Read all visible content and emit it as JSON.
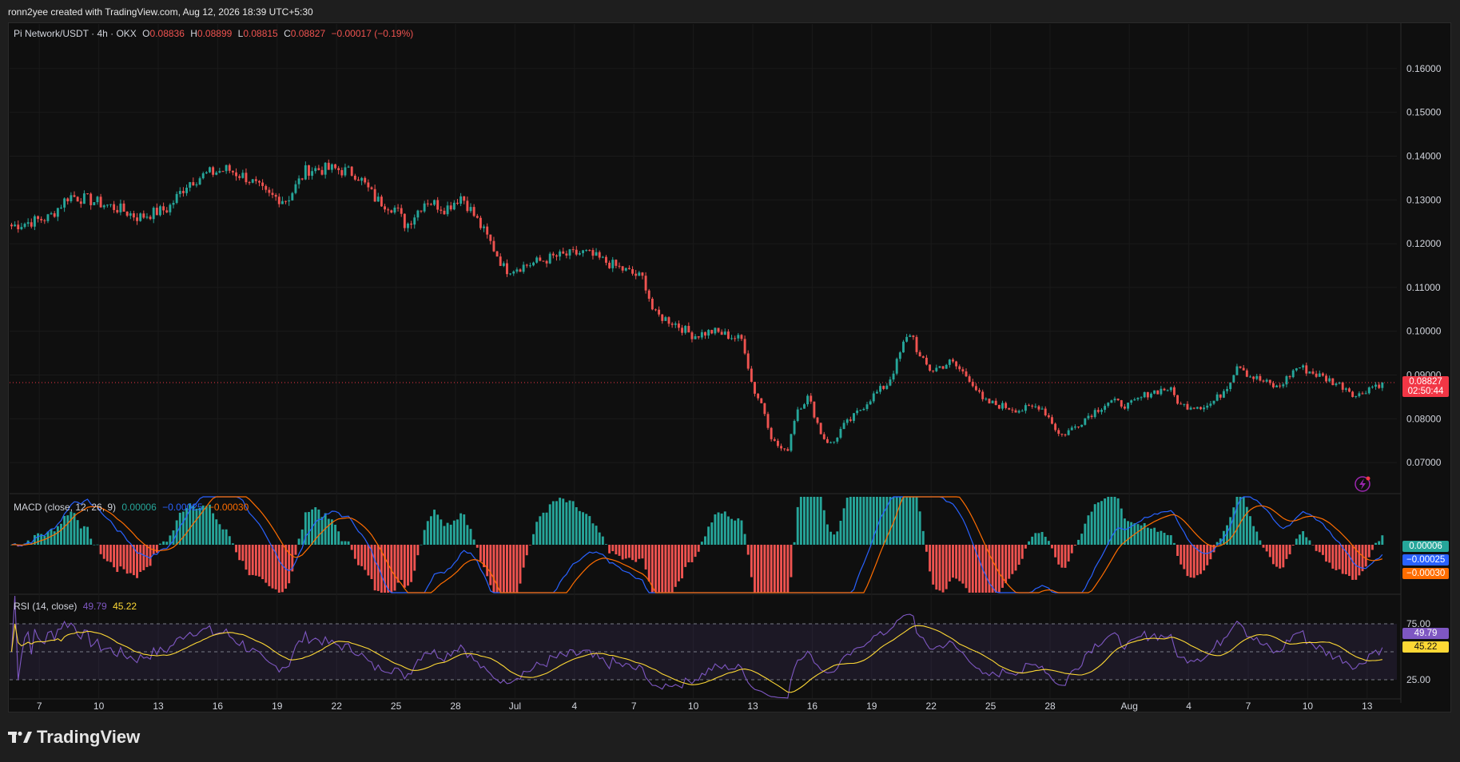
{
  "caption": "ronn2yee created with TradingView.com, Aug 12, 2026 18:39 UTC+5:30",
  "brand": "TradingView",
  "symbol_legend": {
    "symbol": "Pi Network/USDT · 4h · OKX",
    "o_label": "O",
    "o": "0.08836",
    "h_label": "H",
    "h": "0.08899",
    "l_label": "L",
    "l": "0.08815",
    "c_label": "C",
    "c": "0.08827",
    "change": "−0.00017 (−0.19%)"
  },
  "macd_legend": {
    "name": "MACD (close, 12, 26, 9)",
    "hist": "0.00006",
    "macd": "−0.00025",
    "signal": "−0.00030"
  },
  "rsi_legend": {
    "name": "RSI (14, close)",
    "rsi": "49.79",
    "ma": "45.22"
  },
  "price_badge": {
    "price": "0.08827",
    "countdown": "02:50:44"
  },
  "macd_badges": {
    "hist": "0.00006",
    "macd": "−0.00025",
    "signal": "−0.00030"
  },
  "rsi_badges": {
    "rsi": "49.79",
    "ma": "45.22"
  },
  "colors": {
    "up": "#26a69a",
    "down": "#ef5350",
    "macd": "#2962ff",
    "signal": "#ff6d00",
    "rsi": "#7e57c2",
    "rsi_ma": "#fdd835",
    "hist_up": "#26a69a",
    "hist_down": "#ef5350"
  },
  "chart_data": {
    "type": "candlestick",
    "timeframe": "4h",
    "price_axis_ticks": [
      "0.16000",
      "0.15000",
      "0.14000",
      "0.13000",
      "0.12000",
      "0.11000",
      "0.10000",
      "0.09000",
      "0.08000",
      "0.07000"
    ],
    "price_tick_values": [
      0.16,
      0.15,
      0.14,
      0.13,
      0.12,
      0.11,
      0.1,
      0.09,
      0.08,
      0.07
    ],
    "price_ylim": [
      0.064,
      0.168
    ],
    "macd_axis_tick": "0.00000",
    "rsi_axis_ticks": [
      "75.00",
      "25.00"
    ],
    "rsi_tick_values": [
      75,
      25
    ],
    "x_tick_labels": [
      "7",
      "10",
      "13",
      "16",
      "19",
      "22",
      "25",
      "28",
      "Jul",
      "4",
      "7",
      "10",
      "13",
      "16",
      "19",
      "22",
      "25",
      "28",
      "Aug",
      "4",
      "7",
      "10",
      "13"
    ],
    "x_tick_days": [
      0,
      3,
      6,
      9,
      12,
      15,
      18,
      21,
      24,
      27,
      30,
      33,
      36,
      39,
      42,
      45,
      48,
      51,
      55,
      58,
      61,
      64,
      67
    ],
    "x_range_days": [
      -1.5,
      68.5
    ],
    "close_path": [
      [
        -1.4,
        0.124
      ],
      [
        0.5,
        0.126
      ],
      [
        1.5,
        0.131
      ],
      [
        2.5,
        0.13
      ],
      [
        4,
        0.128
      ],
      [
        5,
        0.126
      ],
      [
        6.5,
        0.128
      ],
      [
        7.5,
        0.134
      ],
      [
        8.5,
        0.136
      ],
      [
        9.5,
        0.137
      ],
      [
        10.5,
        0.135
      ],
      [
        11.5,
        0.131
      ],
      [
        12.5,
        0.13
      ],
      [
        13.5,
        0.137
      ],
      [
        15,
        0.137
      ],
      [
        16,
        0.136
      ],
      [
        17,
        0.13
      ],
      [
        18,
        0.128
      ],
      [
        18.5,
        0.124
      ],
      [
        19.5,
        0.13
      ],
      [
        20.5,
        0.128
      ],
      [
        21.3,
        0.131
      ],
      [
        22,
        0.126
      ],
      [
        22.8,
        0.12
      ],
      [
        23.5,
        0.114
      ],
      [
        24.5,
        0.115
      ],
      [
        26,
        0.117
      ],
      [
        27.5,
        0.118
      ],
      [
        28.5,
        0.116
      ],
      [
        29.5,
        0.114
      ],
      [
        30.5,
        0.112
      ],
      [
        31,
        0.104
      ],
      [
        32,
        0.102
      ],
      [
        33,
        0.099
      ],
      [
        34,
        0.1
      ],
      [
        35.5,
        0.098
      ],
      [
        36,
        0.087
      ],
      [
        36.5,
        0.083
      ],
      [
        37,
        0.075
      ],
      [
        37.7,
        0.072
      ],
      [
        38.2,
        0.082
      ],
      [
        38.8,
        0.085
      ],
      [
        39.5,
        0.076
      ],
      [
        40,
        0.074
      ],
      [
        40.5,
        0.078
      ],
      [
        41,
        0.08
      ],
      [
        42,
        0.085
      ],
      [
        42.8,
        0.088
      ],
      [
        43.2,
        0.092
      ],
      [
        43.6,
        0.097
      ],
      [
        44,
        0.1
      ],
      [
        44.4,
        0.094
      ],
      [
        45,
        0.091
      ],
      [
        46,
        0.093
      ],
      [
        47,
        0.089
      ],
      [
        47.6,
        0.084
      ],
      [
        48.5,
        0.083
      ],
      [
        49.5,
        0.082
      ],
      [
        50.5,
        0.083
      ],
      [
        51,
        0.08
      ],
      [
        51.5,
        0.076
      ],
      [
        52.2,
        0.078
      ],
      [
        53,
        0.081
      ],
      [
        54,
        0.084
      ],
      [
        55,
        0.083
      ],
      [
        56,
        0.086
      ],
      [
        57,
        0.087
      ],
      [
        57.6,
        0.083
      ],
      [
        59,
        0.083
      ],
      [
        59.5,
        0.085
      ],
      [
        60,
        0.088
      ],
      [
        60.5,
        0.093
      ],
      [
        61,
        0.09
      ],
      [
        62,
        0.088
      ],
      [
        62.5,
        0.087
      ],
      [
        63.5,
        0.092
      ],
      [
        64.5,
        0.09
      ],
      [
        65,
        0.089
      ],
      [
        66,
        0.087
      ],
      [
        66.5,
        0.085
      ],
      [
        67,
        0.087
      ],
      [
        67.8,
        0.0883
      ]
    ],
    "macd_ylim": [
      -0.0018,
      0.0018
    ],
    "macd_scale_note": "oscillator",
    "rsi_ylim": [
      0,
      100
    ],
    "last_price": 0.08827
  }
}
